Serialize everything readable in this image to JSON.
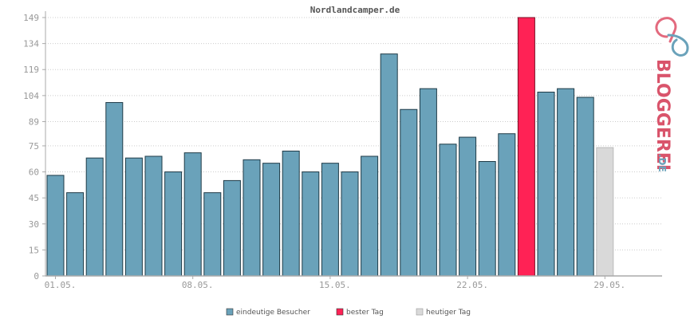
{
  "chart_data": {
    "type": "bar",
    "title": "Nordlandcamper.de",
    "y_ticks": [
      "0",
      "15",
      "30",
      "45",
      "60",
      "75",
      "89",
      "104",
      "119",
      "134",
      "149"
    ],
    "ylim": [
      0,
      149
    ],
    "x_tick_labels": [
      "01.05.",
      "08.05.",
      "15.05.",
      "22.05.",
      "29.05."
    ],
    "values": [
      58,
      48,
      68,
      100,
      68,
      69,
      60,
      71,
      48,
      55,
      67,
      65,
      72,
      60,
      65,
      60,
      69,
      128,
      96,
      108,
      76,
      80,
      66,
      82,
      149,
      106,
      108,
      103,
      74
    ],
    "highlight": {
      "best_day_index": 24,
      "today_index": 28
    },
    "colors": {
      "normal": "#6aa2ba",
      "best": "#ff2255",
      "today": "#d9d9d9",
      "grid": "#cccccc",
      "axis": "#aaaaaa"
    },
    "grid": true,
    "legend_position": "bottom"
  },
  "legend": {
    "unique_visitors": "eindeutige Besucher",
    "best_day": "bester Tag",
    "today": "heutiger Tag"
  },
  "branding": {
    "name": "BLOGGEREI",
    "suffix": ".DE",
    "icon": "bloggerei-logo-icon"
  }
}
